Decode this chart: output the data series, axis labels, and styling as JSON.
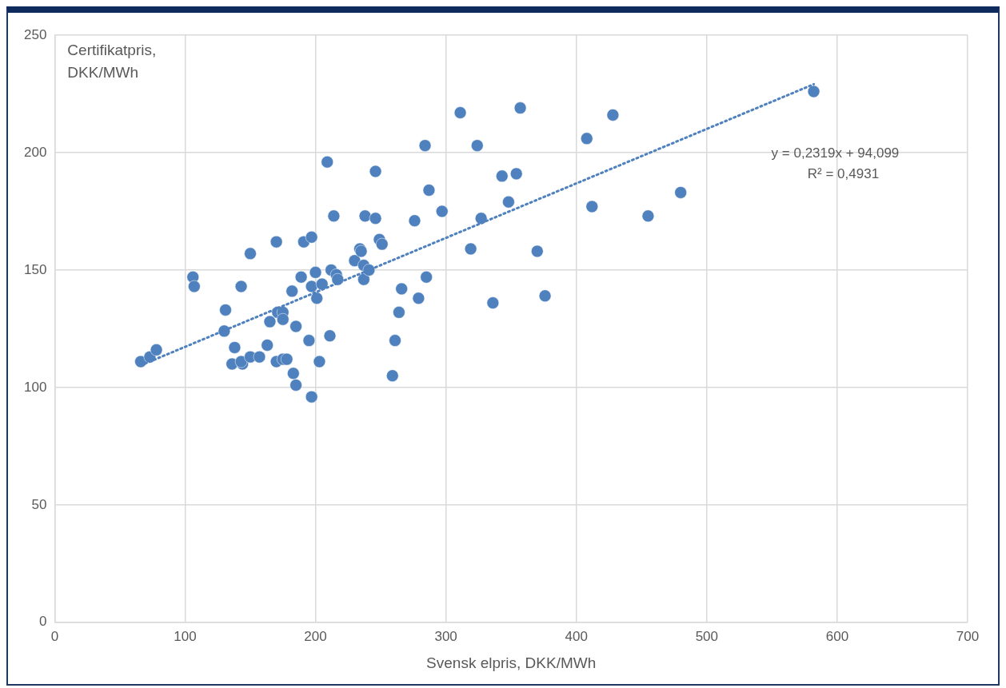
{
  "chart_data": {
    "type": "scatter",
    "xlabel": "Svensk elpris, DKK/MWh",
    "ylabel": "Certifikatpris, DKK/MWh",
    "xlim": [
      0,
      700
    ],
    "xticks": [
      0,
      100,
      200,
      300,
      400,
      500,
      600,
      700
    ],
    "ylim": [
      0,
      250
    ],
    "yticks": [
      0,
      50,
      100,
      150,
      200,
      250
    ],
    "grid": true,
    "legend": false,
    "marker": "circle",
    "annotations": [
      "y = 0,2319x + 94,099",
      "R² = 0,4931"
    ],
    "series": [
      {
        "color": "#4e81bd",
        "x": [
          66,
          73,
          78,
          106,
          107,
          131,
          130,
          138,
          136,
          144,
          143,
          143,
          150,
          150,
          157,
          163,
          165,
          170,
          171,
          170,
          175,
          175,
          175,
          178,
          182,
          185,
          185,
          183,
          189,
          191,
          197,
          197,
          195,
          197,
          200,
          201,
          203,
          205,
          209,
          211,
          212,
          214,
          216,
          217,
          230,
          234,
          235,
          237,
          237,
          238,
          241,
          246,
          246,
          249,
          251,
          259,
          261,
          264,
          266,
          276,
          279,
          284,
          287,
          285,
          297,
          311,
          319,
          324,
          327,
          336,
          343,
          348,
          354,
          357,
          370,
          376,
          408,
          412,
          428,
          455,
          480,
          582
        ],
        "values": [
          111,
          113,
          116,
          147,
          143,
          133,
          124,
          117,
          110,
          110,
          111,
          143,
          113,
          157,
          113,
          118,
          128,
          162,
          132,
          111,
          132,
          129,
          112,
          112,
          141,
          126,
          101,
          106,
          147,
          162,
          164,
          143,
          120,
          96,
          149,
          138,
          111,
          144,
          196,
          122,
          150,
          173,
          148,
          146,
          154,
          159,
          158,
          152,
          146,
          173,
          150,
          192,
          172,
          163,
          161,
          105,
          120,
          132,
          142,
          171,
          138,
          203,
          184,
          147,
          175,
          217,
          159,
          203,
          172,
          136,
          190,
          179,
          191,
          219,
          158,
          139,
          206,
          177,
          216,
          173,
          183,
          226
        ]
      },
      {
        "type": "line",
        "color": "#4e81bd",
        "line_style": "dotted",
        "marker": "none",
        "x": [
          66,
          582
        ],
        "values": [
          109.4,
          229.1
        ]
      }
    ]
  }
}
